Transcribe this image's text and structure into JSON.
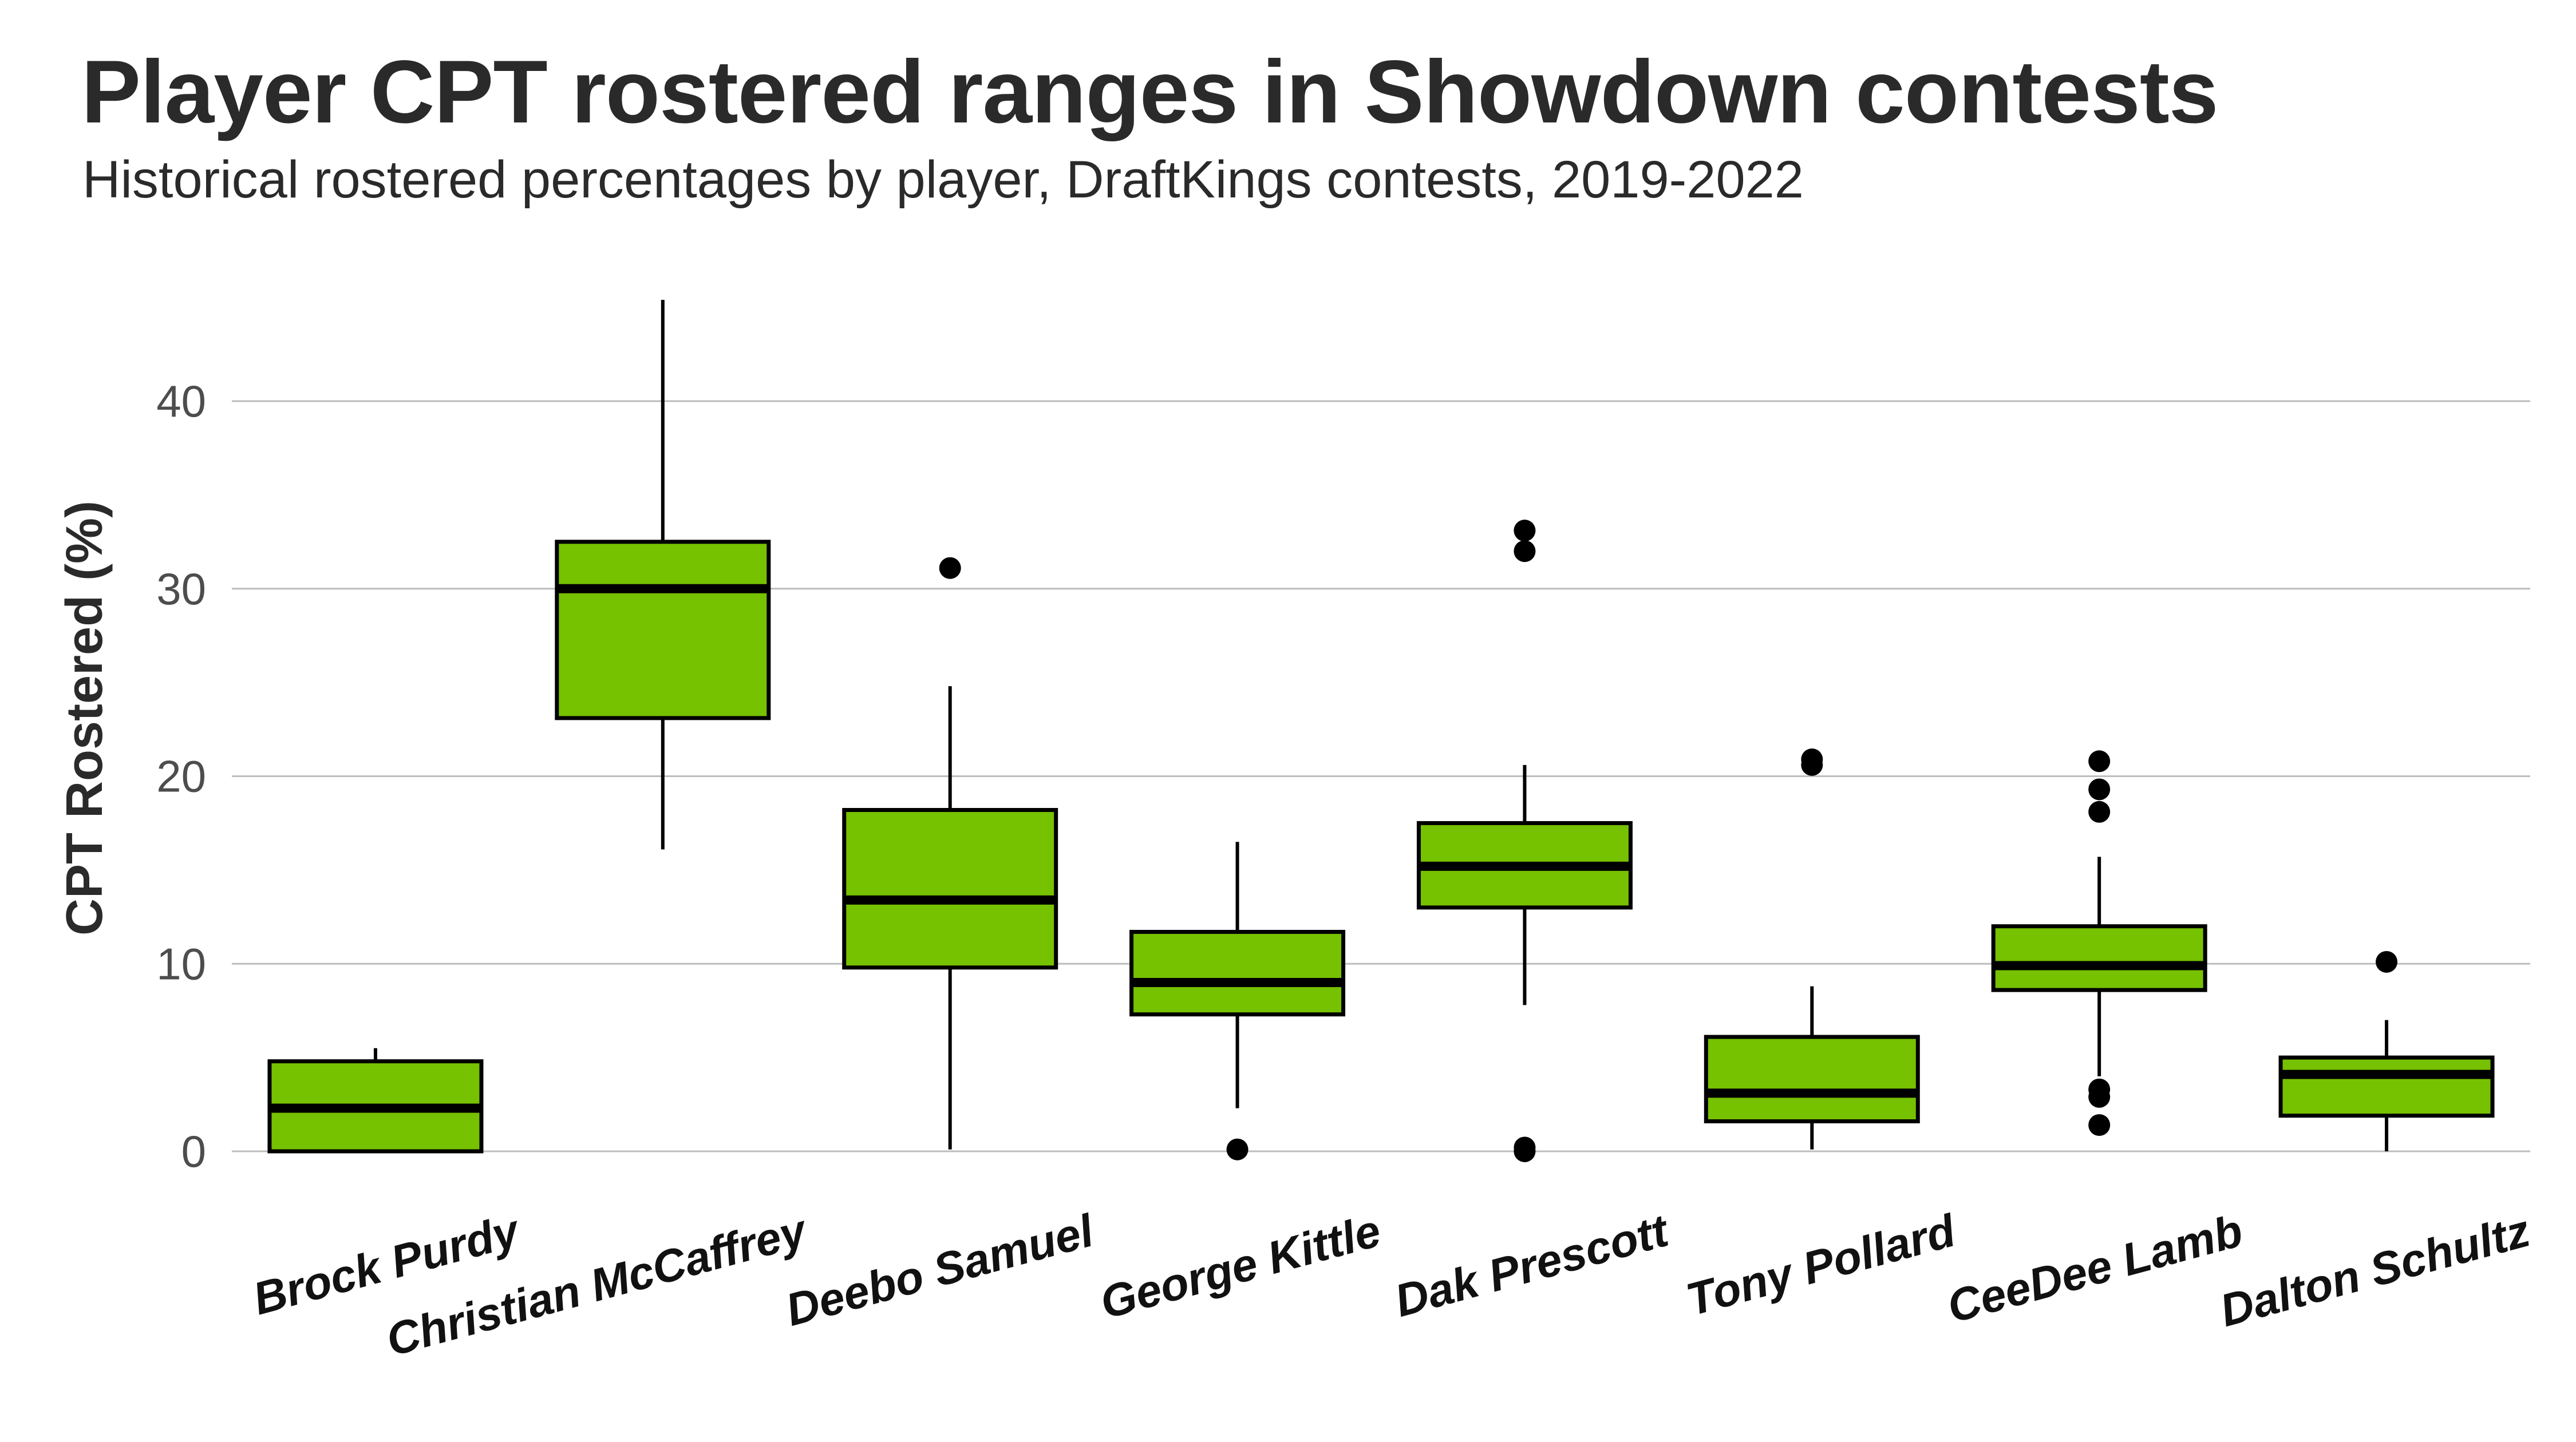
{
  "title": "Player CPT rostered ranges in Showdown contests",
  "subtitle": "Historical rostered percentages by player, DraftKings contests, 2019-2022",
  "colors": {
    "box_fill": "#76c100",
    "box_stroke": "#000000",
    "grid": "#bdbdbd",
    "text": "#2a2a2a",
    "tick_text": "#4d4d4d"
  },
  "chart_data": {
    "type": "boxplot",
    "title": "Player CPT rostered ranges in Showdown contests",
    "subtitle": "Historical rostered percentages by player, DraftKings contests, 2019-2022",
    "xlabel": "",
    "ylabel": "CPT Rostered (%)",
    "ylim": [
      -1.5,
      46.5
    ],
    "yticks": [
      0,
      10,
      20,
      30,
      40
    ],
    "grid": true,
    "categories": [
      "Brock Purdy",
      "Christian McCaffrey",
      "Deebo Samuel",
      "George Kittle",
      "Dak Prescott",
      "Tony Pollard",
      "CeeDee Lamb",
      "Dalton Schultz"
    ],
    "series": [
      {
        "name": "Brock Purdy",
        "whisker_low": 0.0,
        "q1": 0.0,
        "median": 2.3,
        "q3": 4.8,
        "whisker_high": 5.5,
        "outliers": []
      },
      {
        "name": "Christian McCaffrey",
        "whisker_low": 16.1,
        "q1": 23.1,
        "median": 30.0,
        "q3": 32.5,
        "whisker_high": 45.4,
        "outliers": []
      },
      {
        "name": "Deebo Samuel",
        "whisker_low": 0.1,
        "q1": 9.8,
        "median": 13.4,
        "q3": 18.2,
        "whisker_high": 24.8,
        "outliers": [
          31.1
        ]
      },
      {
        "name": "George Kittle",
        "whisker_low": 2.3,
        "q1": 7.3,
        "median": 9.0,
        "q3": 11.7,
        "whisker_high": 16.5,
        "outliers": [
          0.1
        ]
      },
      {
        "name": "Dak Prescott",
        "whisker_low": 7.8,
        "q1": 13.0,
        "median": 15.2,
        "q3": 17.5,
        "whisker_high": 20.6,
        "outliers": [
          33.1,
          32.0,
          0.2,
          0.0
        ]
      },
      {
        "name": "Tony Pollard",
        "whisker_low": 0.1,
        "q1": 1.6,
        "median": 3.1,
        "q3": 6.1,
        "whisker_high": 8.8,
        "outliers": [
          20.9,
          20.6
        ]
      },
      {
        "name": "CeeDee Lamb",
        "whisker_low": 4.0,
        "q1": 8.6,
        "median": 9.9,
        "q3": 12.0,
        "whisker_high": 15.7,
        "outliers": [
          20.8,
          19.3,
          18.1,
          3.3,
          2.9,
          1.4
        ]
      },
      {
        "name": "Dalton Schultz",
        "whisker_low": 0.0,
        "q1": 1.9,
        "median": 4.1,
        "q3": 5.0,
        "whisker_high": 7.0,
        "outliers": [
          10.1
        ]
      }
    ]
  }
}
